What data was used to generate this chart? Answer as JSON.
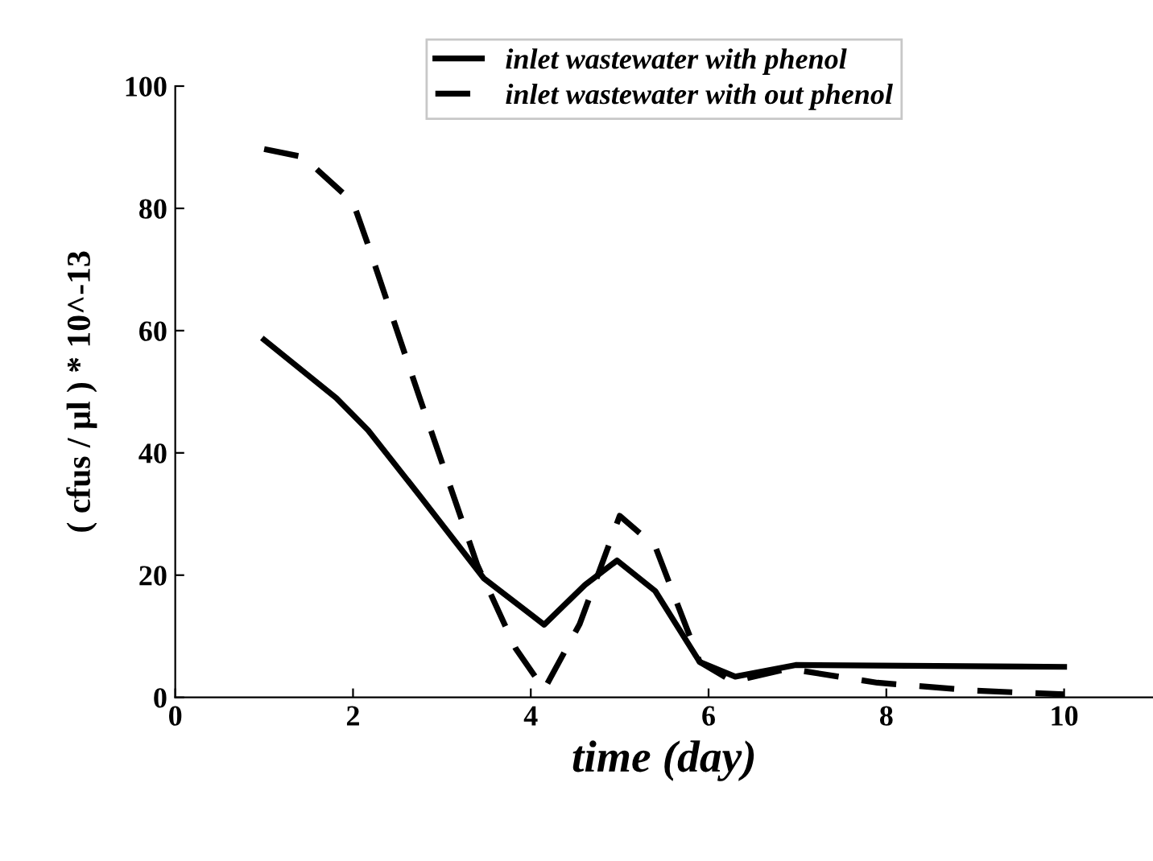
{
  "chart_data": {
    "type": "line",
    "xlabel": "time (day)",
    "ylabel": "( cfus / µl ) * 10^-13",
    "xlim": [
      0,
      11
    ],
    "xticks": [
      0,
      2,
      4,
      6,
      8,
      10
    ],
    "ylim": [
      0,
      100
    ],
    "yticks": [
      0,
      20,
      40,
      60,
      80,
      100
    ],
    "grid": false,
    "legend": "top",
    "marker": "none",
    "series": [
      {
        "name": "inlet wastewater with phenol",
        "color": "#000000",
        "line_style": "solid",
        "x": [
          1,
          1.81,
          2.17,
          2.75,
          3.47,
          4.15,
          4.61,
          4.97,
          5.4,
          5.9,
          6.3,
          6.98,
          10
        ],
        "values": [
          58.5,
          49,
          43.7,
          33,
          19.5,
          11.9,
          18.4,
          22.4,
          17.4,
          5.8,
          3.4,
          5.3,
          5.0
        ]
      },
      {
        "name": "inlet wastewater with out phenol",
        "color": "#000000",
        "line_style": "dashed",
        "x": [
          1,
          1.44,
          2.0,
          2.17,
          2.75,
          3.4,
          3.83,
          4.15,
          4.55,
          5.0,
          5.4,
          5.9,
          6.27,
          6.9,
          7.9,
          9.0,
          10
        ],
        "values": [
          89.7,
          88.4,
          81,
          74,
          49,
          21.6,
          8,
          1.3,
          12,
          29.7,
          24.7,
          5.8,
          2.6,
          4.7,
          2.4,
          1.1,
          0.5
        ]
      }
    ]
  }
}
